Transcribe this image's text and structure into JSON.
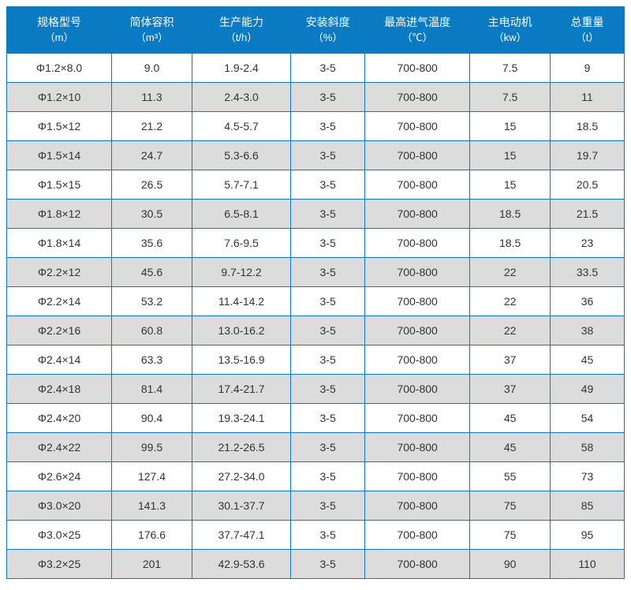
{
  "table": {
    "header_bg": "#0a7ac2",
    "header_color": "#ffffff",
    "border_color": "#0a7ac2",
    "row_bg": "#ffffff",
    "row_alt_bg": "#dcdcdc",
    "text_color": "#333333",
    "font_size": 14,
    "columns": [
      {
        "title": "规格型号",
        "unit": "（m）"
      },
      {
        "title": "简体容积",
        "unit": "（m³）"
      },
      {
        "title": "生产能力",
        "unit": "（t/h）"
      },
      {
        "title": "安装斜度",
        "unit": "（%）"
      },
      {
        "title": "最高进气温度",
        "unit": "（℃）"
      },
      {
        "title": "主电动机",
        "unit": "（kw）"
      },
      {
        "title": "总重量",
        "unit": "（t）"
      }
    ],
    "rows": [
      [
        "Φ1.2×8.0",
        "9.0",
        "1.9-2.4",
        "3-5",
        "700-800",
        "7.5",
        "9"
      ],
      [
        "Φ1.2×10",
        "11.3",
        "2.4-3.0",
        "3-5",
        "700-800",
        "7.5",
        "11"
      ],
      [
        "Φ1.5×12",
        "21.2",
        "4.5-5.7",
        "3-5",
        "700-800",
        "15",
        "18.5"
      ],
      [
        "Φ1.5×14",
        "24.7",
        "5.3-6.6",
        "3-5",
        "700-800",
        "15",
        "19.7"
      ],
      [
        "Φ1.5×15",
        "26.5",
        "5.7-7.1",
        "3-5",
        "700-800",
        "15",
        "20.5"
      ],
      [
        "Φ1.8×12",
        "30.5",
        "6.5-8.1",
        "3-5",
        "700-800",
        "18.5",
        "21.5"
      ],
      [
        "Φ1.8×14",
        "35.6",
        "7.6-9.5",
        "3-5",
        "700-800",
        "18.5",
        "23"
      ],
      [
        "Φ2.2×12",
        "45.6",
        "9.7-12.2",
        "3-5",
        "700-800",
        "22",
        "33.5"
      ],
      [
        "Φ2.2×14",
        "53.2",
        "11.4-14.2",
        "3-5",
        "700-800",
        "22",
        "36"
      ],
      [
        "Φ2.2×16",
        "60.8",
        "13.0-16.2",
        "3-5",
        "700-800",
        "22",
        "38"
      ],
      [
        "Φ2.4×14",
        "63.3",
        "13.5-16.9",
        "3-5",
        "700-800",
        "37",
        "45"
      ],
      [
        "Φ2.4×18",
        "81.4",
        "17.4-21.7",
        "3-5",
        "700-800",
        "37",
        "49"
      ],
      [
        "Φ2.4×20",
        "90.4",
        "19.3-24.1",
        "3-5",
        "700-800",
        "45",
        "54"
      ],
      [
        "Φ2.4×22",
        "99.5",
        "21.2-26.5",
        "3-5",
        "700-800",
        "45",
        "58"
      ],
      [
        "Φ2.6×24",
        "127.4",
        "27.2-34.0",
        "3-5",
        "700-800",
        "55",
        "73"
      ],
      [
        "Φ3.0×20",
        "141.3",
        "30.1-37.7",
        "3-5",
        "700-800",
        "75",
        "85"
      ],
      [
        "Φ3.0×25",
        "176.6",
        "37.7-47.1",
        "3-5",
        "700-800",
        "75",
        "95"
      ],
      [
        "Φ3.2×25",
        "201",
        "42.9-53.6",
        "3-5",
        "700-800",
        "90",
        "110"
      ]
    ]
  }
}
